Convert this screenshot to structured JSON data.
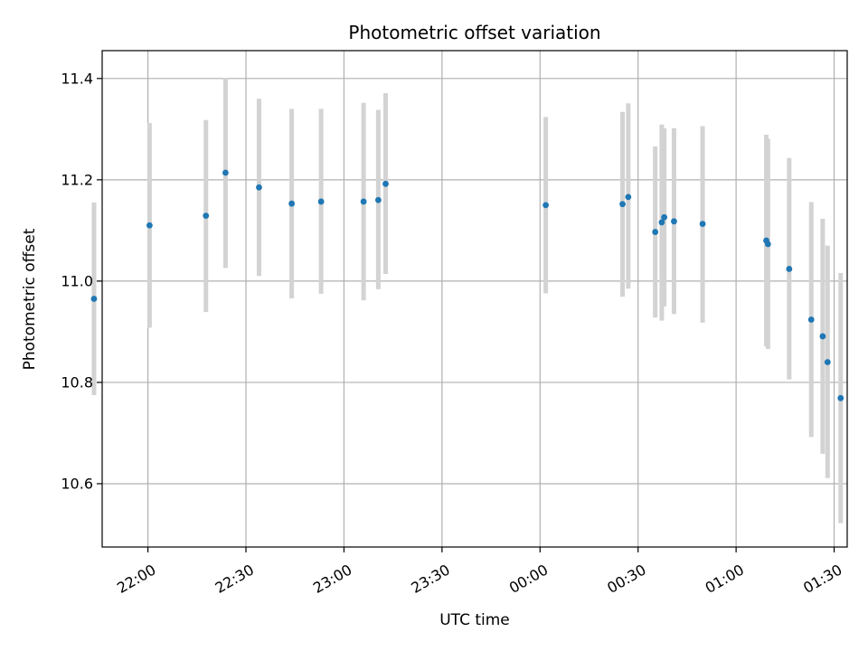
{
  "chart_data": {
    "type": "scatter",
    "title": "Photometric offset variation",
    "xlabel": "UTC time",
    "ylabel": "Photometric offset",
    "xlim": [
      "21:46",
      "01:34"
    ],
    "ylim": [
      10.475,
      11.455
    ],
    "x_ticks": [
      "22:00",
      "22:30",
      "23:00",
      "23:30",
      "00:00",
      "00:30",
      "01:00",
      "01:30"
    ],
    "y_ticks": [
      10.6,
      10.8,
      11.0,
      11.2,
      11.4
    ],
    "y_tick_labels": [
      "10.6",
      "10.8",
      "11.0",
      "11.2",
      "11.4"
    ],
    "grid": true,
    "points": [
      {
        "x": "21:43:30",
        "y": 10.965,
        "ylow": 10.775,
        "yhigh": 11.155
      },
      {
        "x": "22:00:30",
        "y": 11.11,
        "ylow": 10.908,
        "yhigh": 11.312
      },
      {
        "x": "22:17:45",
        "y": 11.129,
        "ylow": 10.939,
        "yhigh": 11.318
      },
      {
        "x": "22:23:45",
        "y": 11.214,
        "ylow": 11.026,
        "yhigh": 11.401
      },
      {
        "x": "22:34:00",
        "y": 11.185,
        "ylow": 11.01,
        "yhigh": 11.36
      },
      {
        "x": "22:44:00",
        "y": 11.153,
        "ylow": 10.966,
        "yhigh": 11.34
      },
      {
        "x": "22:53:00",
        "y": 11.157,
        "ylow": 10.975,
        "yhigh": 11.34
      },
      {
        "x": "23:06:00",
        "y": 11.157,
        "ylow": 10.962,
        "yhigh": 11.352
      },
      {
        "x": "23:10:30",
        "y": 11.16,
        "ylow": 10.984,
        "yhigh": 11.338
      },
      {
        "x": "23:12:45",
        "y": 11.192,
        "ylow": 11.014,
        "yhigh": 11.371
      },
      {
        "x": "00:01:45",
        "y": 11.15,
        "ylow": 10.976,
        "yhigh": 11.324
      },
      {
        "x": "00:25:15",
        "y": 11.152,
        "ylow": 10.969,
        "yhigh": 11.334
      },
      {
        "x": "00:27:00",
        "y": 11.166,
        "ylow": 10.985,
        "yhigh": 11.351
      },
      {
        "x": "00:35:15",
        "y": 11.097,
        "ylow": 10.928,
        "yhigh": 11.266
      },
      {
        "x": "00:37:15",
        "y": 11.116,
        "ylow": 10.922,
        "yhigh": 11.309
      },
      {
        "x": "00:38:00",
        "y": 11.126,
        "ylow": 10.95,
        "yhigh": 11.302
      },
      {
        "x": "00:41:00",
        "y": 11.118,
        "ylow": 10.935,
        "yhigh": 11.302
      },
      {
        "x": "00:49:45",
        "y": 11.113,
        "ylow": 10.918,
        "yhigh": 11.306
      },
      {
        "x": "01:09:15",
        "y": 11.08,
        "ylow": 10.871,
        "yhigh": 11.289
      },
      {
        "x": "01:09:45",
        "y": 11.073,
        "ylow": 10.866,
        "yhigh": 11.281
      },
      {
        "x": "01:16:15",
        "y": 11.024,
        "ylow": 10.806,
        "yhigh": 11.243
      },
      {
        "x": "01:23:00",
        "y": 10.924,
        "ylow": 10.692,
        "yhigh": 11.156
      },
      {
        "x": "01:26:30",
        "y": 10.891,
        "ylow": 10.659,
        "yhigh": 11.123
      },
      {
        "x": "01:28:00",
        "y": 10.84,
        "ylow": 10.611,
        "yhigh": 11.07
      },
      {
        "x": "01:32:00",
        "y": 10.769,
        "ylow": 10.522,
        "yhigh": 11.016
      }
    ],
    "colors": {
      "point": "#1f77b4",
      "errorbar": "#d3d3d3",
      "grid": "#b0b0b0",
      "axis": "#000000"
    }
  }
}
